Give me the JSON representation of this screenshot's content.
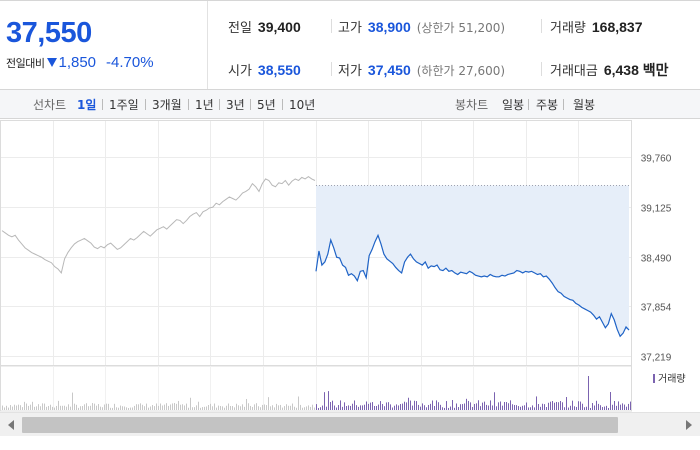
{
  "price": {
    "current": "37,550",
    "change_label": "전일대비",
    "change_value": "1,850",
    "change_pct": "-4.70%",
    "direction": "down",
    "down_color": "#1a56db"
  },
  "stats": {
    "prev_close_label": "전일",
    "prev_close": "39,400",
    "high_label": "고가",
    "high": "38,900",
    "upper_limit": "(상한가 51,200)",
    "volume_label": "거래량",
    "volume": "168,837",
    "open_label": "시가",
    "open": "38,550",
    "low_label": "저가",
    "low": "37,450",
    "lower_limit": "(하한가 27,600)",
    "trade_value_label": "거래대금",
    "trade_value": "6,438 백만"
  },
  "tabs": {
    "line_chart_label": "선차트",
    "periods": [
      "1일",
      "1주일",
      "3개월",
      "1년",
      "3년",
      "5년",
      "10년"
    ],
    "active_period": "1일",
    "candle_chart_label": "봉차트",
    "candles": [
      "일봉",
      "주봉",
      "월봉"
    ]
  },
  "chart_data": {
    "type": "line",
    "y_ticks": [
      "39,760",
      "39,125",
      "38,490",
      "37,854",
      "37,219"
    ],
    "ylim": [
      37219,
      39760
    ],
    "prev_close_reference": 39400,
    "volume_label": "거래량",
    "series": [
      {
        "role": "previous-day",
        "color": "#b8b8b8",
        "values": [
          38820,
          38790,
          38760,
          38740,
          38760,
          38700,
          38650,
          38600,
          38570,
          38540,
          38520,
          38500,
          38480,
          38450,
          38430,
          38410,
          38360,
          38330,
          38280,
          38460,
          38540,
          38600,
          38650,
          38680,
          38700,
          38720,
          38690,
          38660,
          38610,
          38590,
          38620,
          38600,
          38640,
          38660,
          38620,
          38580,
          38600,
          38640,
          38680,
          38720,
          38700,
          38730,
          38770,
          38810,
          38780,
          38750,
          38790,
          38830,
          38850,
          38870,
          38840,
          38880,
          38920,
          38960,
          38950,
          38910,
          38950,
          39000,
          39030,
          39050,
          39000,
          39060,
          39080,
          39110,
          39120,
          39170,
          39150,
          39190,
          39220,
          39250,
          39230,
          39210,
          39250,
          39300,
          39320,
          39350,
          39420,
          39380,
          39320,
          39420,
          39480,
          39460,
          39400,
          39380,
          39430,
          39420,
          39460,
          39400,
          39450,
          39480,
          39460,
          39500,
          39480,
          39510,
          39480,
          39460
        ]
      },
      {
        "role": "today",
        "color": "#1f63c6",
        "values": [
          38300,
          38560,
          38380,
          38420,
          38520,
          38700,
          38600,
          38480,
          38470,
          38380,
          38350,
          38250,
          38270,
          38240,
          38180,
          38300,
          38310,
          38220,
          38500,
          38580,
          38680,
          38760,
          38650,
          38520,
          38460,
          38430,
          38400,
          38350,
          38310,
          38280,
          38420,
          38480,
          38520,
          38460,
          38420,
          38400,
          38380,
          38420,
          38340,
          38370,
          38360,
          38380,
          38320,
          38310,
          38340,
          38300,
          38310,
          38280,
          38260,
          38290,
          38280,
          38270,
          38300,
          38280,
          38250,
          38240,
          38230,
          38240,
          38230,
          38260,
          38240,
          38230,
          38230,
          38250,
          38240,
          38260,
          38270,
          38280,
          38310,
          38300,
          38280,
          38300,
          38290,
          38300,
          38280,
          38260,
          38270,
          38230,
          38240,
          38200,
          38150,
          38090,
          38040,
          38020,
          37980,
          37960,
          37940,
          37930,
          37890,
          37870,
          37840,
          37820,
          37800,
          37780,
          37740,
          37690,
          37720,
          37650,
          37580,
          37630,
          37760,
          37680,
          37560,
          37470,
          37510,
          37590,
          37550
        ]
      }
    ]
  }
}
